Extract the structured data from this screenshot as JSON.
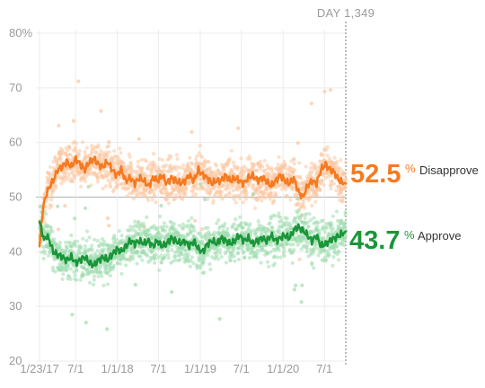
{
  "chart_data": {
    "type": "line",
    "day_label": "DAY 1,349",
    "y_ticks": [
      "80%",
      "70",
      "60",
      "50",
      "40",
      "30",
      "20"
    ],
    "y_tick_values": [
      80,
      70,
      60,
      50,
      40,
      30,
      20
    ],
    "ylim": [
      20,
      80
    ],
    "x_ticks": [
      "1/23/17",
      "7/1",
      "1/1/18",
      "7/1",
      "1/1/19",
      "7/1",
      "1/1/20",
      "7/1"
    ],
    "x_tick_days": [
      0,
      159,
      343,
      524,
      708,
      889,
      1073,
      1255
    ],
    "xlim": [
      0,
      1349
    ],
    "grid": true,
    "colors": {
      "disapprove": "#f57a20",
      "approve": "#1a9639",
      "disapprove_dots": "#fbc6a0",
      "approve_dots": "#9fdcae",
      "grid": "#ececec",
      "midline": "#bbbbbb"
    },
    "series": [
      {
        "name": "Disapprove",
        "current_value": "52.5",
        "unit": "%",
        "days": [
          0,
          10,
          20,
          30,
          45,
          60,
          80,
          100,
          120,
          140,
          160,
          180,
          200,
          220,
          240,
          260,
          280,
          300,
          320,
          340,
          360,
          380,
          400,
          420,
          440,
          460,
          480,
          500,
          520,
          540,
          560,
          580,
          600,
          620,
          640,
          660,
          680,
          700,
          720,
          740,
          760,
          780,
          800,
          820,
          840,
          860,
          880,
          900,
          920,
          940,
          960,
          980,
          1000,
          1020,
          1040,
          1060,
          1080,
          1100,
          1120,
          1140,
          1160,
          1180,
          1200,
          1220,
          1240,
          1260,
          1280,
          1300,
          1320,
          1349
        ],
        "values": [
          41,
          46,
          49,
          50.5,
          52,
          53,
          55,
          55.5,
          56.5,
          55.5,
          57,
          56,
          55,
          56.5,
          57,
          56,
          55.5,
          56.5,
          55,
          54,
          55,
          53,
          53.5,
          52.5,
          53.5,
          53,
          52,
          53.5,
          53,
          54,
          52.5,
          53.5,
          53,
          52.5,
          53,
          54,
          53,
          55,
          54,
          53.5,
          52.5,
          53,
          53,
          54,
          53,
          53.5,
          53,
          52.5,
          53.5,
          54,
          53,
          53.5,
          53,
          52,
          53,
          54,
          53,
          52.5,
          53.5,
          51,
          50,
          52,
          53,
          52.5,
          55,
          56,
          55,
          54.5,
          53,
          52.5
        ]
      },
      {
        "name": "Approve",
        "current_value": "43.7",
        "unit": "%",
        "days": [
          0,
          10,
          20,
          30,
          45,
          60,
          80,
          100,
          120,
          140,
          160,
          180,
          200,
          220,
          240,
          260,
          280,
          300,
          320,
          340,
          360,
          380,
          400,
          420,
          440,
          460,
          480,
          500,
          520,
          540,
          560,
          580,
          600,
          620,
          640,
          660,
          680,
          700,
          720,
          740,
          760,
          780,
          800,
          820,
          840,
          860,
          880,
          900,
          920,
          940,
          960,
          980,
          1000,
          1020,
          1040,
          1060,
          1080,
          1100,
          1120,
          1140,
          1160,
          1180,
          1200,
          1220,
          1240,
          1260,
          1280,
          1300,
          1320,
          1349
        ],
        "values": [
          45.5,
          44,
          42,
          43,
          42,
          40,
          39.5,
          39,
          38.5,
          39,
          38,
          38.5,
          39,
          38,
          37.5,
          38.5,
          39,
          38.5,
          39.5,
          40.5,
          40,
          41,
          42,
          41.5,
          42,
          41.5,
          42,
          41,
          42,
          41,
          41.5,
          42.5,
          42,
          41.5,
          42,
          41,
          42,
          40.5,
          40,
          41.5,
          42,
          41.5,
          42.5,
          42,
          41.5,
          42,
          43,
          42,
          42.5,
          41.5,
          42,
          42.5,
          42,
          43,
          42,
          42.5,
          43,
          42.5,
          44,
          44.5,
          44,
          43,
          42,
          43,
          41,
          41.5,
          42,
          42.5,
          43,
          43.7
        ]
      }
    ]
  }
}
